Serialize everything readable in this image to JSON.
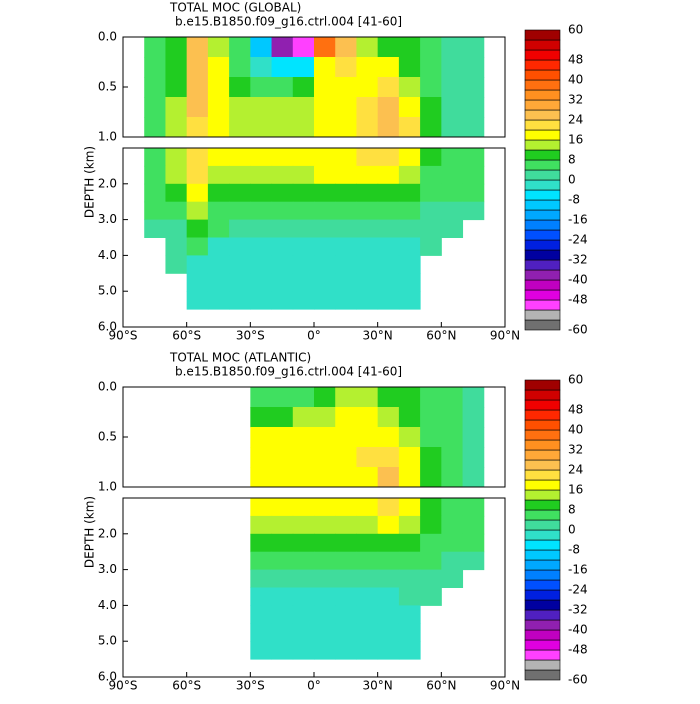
{
  "chart_data": [
    {
      "type": "contour",
      "title": "TOTAL MOC (GLOBAL)",
      "subtitle": "b.e15.B1850.f09_g16.ctrl.004  [41-60]",
      "ylabel": "DEPTH (km)",
      "xlim": [
        -90,
        90
      ],
      "xticks": [
        {
          "value": -90,
          "label": "90°S"
        },
        {
          "value": -60,
          "label": "60°S"
        },
        {
          "value": -30,
          "label": "30°S"
        },
        {
          "value": 0,
          "label": "0°"
        },
        {
          "value": 30,
          "label": "30°N"
        },
        {
          "value": 60,
          "label": "60°N"
        },
        {
          "value": 90,
          "label": "90°N"
        }
      ],
      "panels": [
        {
          "ylim": [
            0,
            1
          ],
          "yticks": [
            {
              "value": 0,
              "label": "0.0"
            },
            {
              "value": 0.5,
              "label": "0.5"
            },
            {
              "value": 1,
              "label": "1.0"
            }
          ]
        },
        {
          "ylim": [
            1,
            6
          ],
          "yticks": [
            {
              "value": 2,
              "label": "2.0"
            },
            {
              "value": 3,
              "label": "3.0"
            },
            {
              "value": 4,
              "label": "4.0"
            },
            {
              "value": 5,
              "label": "5.0"
            },
            {
              "value": 6,
              "label": "6.0"
            }
          ]
        }
      ],
      "x": [
        -85,
        -75,
        -65,
        -55,
        -45,
        -35,
        -25,
        -15,
        -5,
        5,
        15,
        25,
        35,
        45,
        55,
        65,
        75,
        85
      ],
      "y": [
        0.1,
        0.3,
        0.5,
        0.7,
        0.9,
        1.25,
        1.75,
        2.25,
        2.75,
        3.25,
        3.75,
        4.25,
        4.75,
        5.25,
        5.75
      ],
      "z": [
        [
          null,
          4,
          8,
          24,
          12,
          4,
          -12,
          -40,
          -50,
          36,
          24,
          12,
          8,
          8,
          4,
          2,
          2,
          null
        ],
        [
          null,
          4,
          8,
          24,
          16,
          4,
          -4,
          -8,
          -8,
          16,
          20,
          16,
          16,
          8,
          4,
          2,
          2,
          null
        ],
        [
          null,
          4,
          8,
          24,
          16,
          8,
          4,
          4,
          8,
          16,
          16,
          16,
          20,
          12,
          4,
          2,
          2,
          null
        ],
        [
          null,
          4,
          12,
          24,
          16,
          12,
          12,
          12,
          12,
          16,
          16,
          20,
          24,
          16,
          8,
          2,
          2,
          null
        ],
        [
          null,
          4,
          12,
          20,
          16,
          12,
          12,
          12,
          12,
          16,
          16,
          20,
          24,
          20,
          8,
          2,
          2,
          null
        ],
        [
          null,
          4,
          12,
          20,
          16,
          16,
          16,
          16,
          16,
          16,
          16,
          20,
          20,
          16,
          8,
          4,
          4,
          null
        ],
        [
          null,
          4,
          12,
          20,
          12,
          12,
          12,
          12,
          12,
          16,
          16,
          16,
          16,
          12,
          4,
          4,
          4,
          null
        ],
        [
          null,
          4,
          8,
          16,
          8,
          8,
          8,
          8,
          8,
          8,
          8,
          8,
          8,
          8,
          4,
          4,
          4,
          null
        ],
        [
          null,
          4,
          4,
          12,
          4,
          4,
          4,
          4,
          4,
          4,
          4,
          4,
          4,
          4,
          2,
          2,
          2,
          null
        ],
        [
          null,
          2,
          2,
          8,
          4,
          2,
          2,
          2,
          2,
          2,
          2,
          2,
          2,
          2,
          2,
          2,
          null,
          null
        ],
        [
          null,
          null,
          2,
          4,
          -2,
          -2,
          -2,
          -2,
          -2,
          -2,
          -2,
          -2,
          -2,
          -2,
          2,
          null,
          null,
          null
        ],
        [
          null,
          null,
          2,
          -2,
          -2,
          -2,
          -2,
          -2,
          -2,
          -2,
          -2,
          -2,
          -2,
          -2,
          null,
          null,
          null,
          null
        ],
        [
          null,
          null,
          null,
          -2,
          -2,
          -2,
          -2,
          -2,
          -2,
          -2,
          -2,
          -2,
          -2,
          -2,
          null,
          null,
          null,
          null
        ],
        [
          null,
          null,
          null,
          -2,
          -2,
          -2,
          -2,
          -2,
          -2,
          -2,
          -2,
          -2,
          -2,
          -2,
          null,
          null,
          null,
          null
        ],
        [
          null,
          null,
          null,
          null,
          null,
          null,
          null,
          null,
          null,
          null,
          null,
          null,
          null,
          null,
          null,
          null,
          null,
          null
        ]
      ],
      "colorbar": {
        "levels": [
          -60,
          -56,
          -52,
          -48,
          -44,
          -40,
          -36,
          -32,
          -28,
          -24,
          -20,
          -16,
          -12,
          -8,
          -4,
          0,
          4,
          8,
          12,
          16,
          20,
          24,
          28,
          32,
          36,
          40,
          44,
          48,
          52,
          56,
          60
        ],
        "colors": [
          "#707070",
          "#b4b4b4",
          "#ff40ff",
          "#e000e0",
          "#c000c0",
          "#9020b0",
          "#5020c0",
          "#0000a0",
          "#0020e0",
          "#0050ff",
          "#0080ff",
          "#00a8ff",
          "#00c8ff",
          "#00e4ff",
          "#30e0c8",
          "#40dc9c",
          "#40e060",
          "#20cc20",
          "#b4f030",
          "#ffff00",
          "#ffe040",
          "#fcc050",
          "#ffa838",
          "#ff9020",
          "#ff7010",
          "#ff5000",
          "#ff2800",
          "#f00000",
          "#d00000",
          "#a00000"
        ],
        "ticks": [
          60,
          48,
          40,
          32,
          24,
          16,
          8,
          0,
          -8,
          -16,
          -24,
          -32,
          -40,
          -48,
          -60
        ]
      }
    },
    {
      "type": "contour",
      "title": "TOTAL MOC (ATLANTIC)",
      "subtitle": "b.e15.B1850.f09_g16.ctrl.004  [41-60]",
      "ylabel": "DEPTH (km)",
      "xlim": [
        -90,
        90
      ],
      "xticks": [
        {
          "value": -90,
          "label": "90°S"
        },
        {
          "value": -60,
          "label": "60°S"
        },
        {
          "value": -30,
          "label": "30°S"
        },
        {
          "value": 0,
          "label": "0°"
        },
        {
          "value": 30,
          "label": "30°N"
        },
        {
          "value": 60,
          "label": "60°N"
        },
        {
          "value": 90,
          "label": "90°N"
        }
      ],
      "panels": [
        {
          "ylim": [
            0,
            1
          ],
          "yticks": [
            {
              "value": 0,
              "label": "0.0"
            },
            {
              "value": 0.5,
              "label": "0.5"
            },
            {
              "value": 1,
              "label": "1.0"
            }
          ]
        },
        {
          "ylim": [
            1,
            6
          ],
          "yticks": [
            {
              "value": 2,
              "label": "2.0"
            },
            {
              "value": 3,
              "label": "3.0"
            },
            {
              "value": 4,
              "label": "4.0"
            },
            {
              "value": 5,
              "label": "5.0"
            },
            {
              "value": 6,
              "label": "6.0"
            }
          ]
        }
      ],
      "x": [
        -85,
        -75,
        -65,
        -55,
        -45,
        -35,
        -25,
        -15,
        -5,
        5,
        15,
        25,
        35,
        45,
        55,
        65,
        75,
        85
      ],
      "y": [
        0.1,
        0.3,
        0.5,
        0.7,
        0.9,
        1.25,
        1.75,
        2.25,
        2.75,
        3.25,
        3.75,
        4.25,
        4.75,
        5.25,
        5.75
      ],
      "z": [
        [
          null,
          null,
          null,
          null,
          null,
          null,
          4,
          4,
          4,
          8,
          12,
          12,
          8,
          8,
          4,
          4,
          2,
          null
        ],
        [
          null,
          null,
          null,
          null,
          null,
          null,
          8,
          8,
          12,
          12,
          16,
          16,
          12,
          8,
          4,
          4,
          2,
          null
        ],
        [
          null,
          null,
          null,
          null,
          null,
          null,
          16,
          16,
          16,
          16,
          16,
          16,
          16,
          12,
          4,
          4,
          2,
          null
        ],
        [
          null,
          null,
          null,
          null,
          null,
          null,
          16,
          16,
          16,
          16,
          16,
          20,
          20,
          16,
          8,
          4,
          2,
          null
        ],
        [
          null,
          null,
          null,
          null,
          null,
          null,
          16,
          16,
          16,
          16,
          16,
          16,
          24,
          16,
          8,
          4,
          2,
          null
        ],
        [
          null,
          null,
          null,
          null,
          null,
          null,
          16,
          16,
          16,
          16,
          16,
          16,
          20,
          16,
          8,
          4,
          4,
          null
        ],
        [
          null,
          null,
          null,
          null,
          null,
          null,
          12,
          12,
          12,
          12,
          12,
          12,
          16,
          12,
          8,
          4,
          4,
          null
        ],
        [
          null,
          null,
          null,
          null,
          null,
          null,
          8,
          8,
          8,
          8,
          8,
          8,
          8,
          8,
          4,
          4,
          4,
          null
        ],
        [
          null,
          null,
          null,
          null,
          null,
          null,
          4,
          4,
          4,
          4,
          4,
          4,
          4,
          4,
          4,
          2,
          2,
          null
        ],
        [
          null,
          null,
          null,
          null,
          null,
          null,
          2,
          2,
          2,
          2,
          2,
          2,
          2,
          2,
          2,
          2,
          null,
          null
        ],
        [
          null,
          null,
          null,
          null,
          null,
          null,
          -2,
          -2,
          -2,
          -2,
          -2,
          -2,
          -2,
          2,
          2,
          null,
          null,
          null
        ],
        [
          null,
          null,
          null,
          null,
          null,
          null,
          -2,
          -2,
          -2,
          -2,
          -2,
          -2,
          -2,
          -2,
          null,
          null,
          null,
          null
        ],
        [
          null,
          null,
          null,
          null,
          null,
          null,
          -2,
          -2,
          -2,
          -2,
          -2,
          -2,
          -2,
          -2,
          null,
          null,
          null,
          null
        ],
        [
          null,
          null,
          null,
          null,
          null,
          null,
          -2,
          -2,
          -2,
          -2,
          -2,
          -2,
          -2,
          -2,
          null,
          null,
          null,
          null
        ],
        [
          null,
          null,
          null,
          null,
          null,
          null,
          null,
          null,
          null,
          null,
          null,
          null,
          null,
          null,
          null,
          null,
          null,
          null
        ]
      ],
      "colorbar": {
        "levels": [
          -60,
          -56,
          -52,
          -48,
          -44,
          -40,
          -36,
          -32,
          -28,
          -24,
          -20,
          -16,
          -12,
          -8,
          -4,
          0,
          4,
          8,
          12,
          16,
          20,
          24,
          28,
          32,
          36,
          40,
          44,
          48,
          52,
          56,
          60
        ],
        "colors": [
          "#707070",
          "#b4b4b4",
          "#ff40ff",
          "#e000e0",
          "#c000c0",
          "#9020b0",
          "#5020c0",
          "#0000a0",
          "#0020e0",
          "#0050ff",
          "#0080ff",
          "#00a8ff",
          "#00c8ff",
          "#00e4ff",
          "#30e0c8",
          "#40dc9c",
          "#40e060",
          "#20cc20",
          "#b4f030",
          "#ffff00",
          "#ffe040",
          "#fcc050",
          "#ffa838",
          "#ff9020",
          "#ff7010",
          "#ff5000",
          "#ff2800",
          "#f00000",
          "#d00000",
          "#a00000"
        ],
        "ticks": [
          60,
          48,
          40,
          32,
          24,
          16,
          8,
          0,
          -8,
          -16,
          -24,
          -32,
          -40,
          -48,
          -60
        ]
      }
    }
  ]
}
